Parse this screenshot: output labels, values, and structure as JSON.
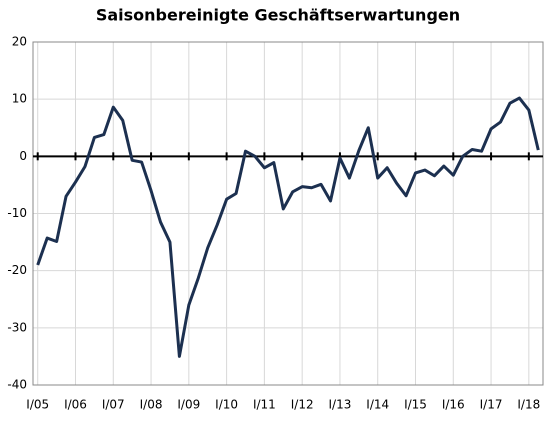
{
  "chart_data": {
    "type": "line",
    "title": "Saisonbereinigte Geschäftserwartungen",
    "categories": [
      "I/05",
      null,
      null,
      null,
      "I/06",
      null,
      null,
      null,
      "I/07",
      null,
      null,
      null,
      "I/08",
      null,
      null,
      null,
      "I/09",
      null,
      null,
      null,
      "I/10",
      null,
      null,
      null,
      "I/11",
      null,
      null,
      null,
      "I/12",
      null,
      null,
      null,
      "I/13",
      null,
      null,
      null,
      "I/14",
      null,
      null,
      null,
      "I/15",
      null,
      null,
      null,
      "I/16",
      null,
      null,
      null,
      "I/17",
      null,
      null,
      null,
      "I/18",
      null
    ],
    "series": [
      {
        "color": "#1c3050",
        "values": [
          -19,
          -14.3,
          -14.9,
          -7,
          -4.5,
          -1.8,
          3.3,
          3.8,
          8.6,
          6.3,
          -0.7,
          -1,
          -6,
          -11.5,
          -15,
          -35,
          -26,
          -21.3,
          -16,
          -12,
          -7.5,
          -6.5,
          0.9,
          0,
          -2,
          -1.1,
          -9.2,
          -6.2,
          -5.3,
          -5.5,
          -4.9,
          -7.8,
          -0.3,
          -3.8,
          1,
          5,
          -3.8,
          -2,
          -4.7,
          -6.9,
          -2.9,
          -2.4,
          -3.4,
          -1.7,
          -3.3,
          0,
          1.2,
          0.9,
          4.8,
          6,
          9.3,
          10.2,
          8.1,
          1.1
        ]
      }
    ],
    "ylim": [
      -40,
      20
    ],
    "yticks": [
      -40,
      -30,
      -20,
      -10,
      0,
      10,
      20
    ],
    "grid": true
  }
}
